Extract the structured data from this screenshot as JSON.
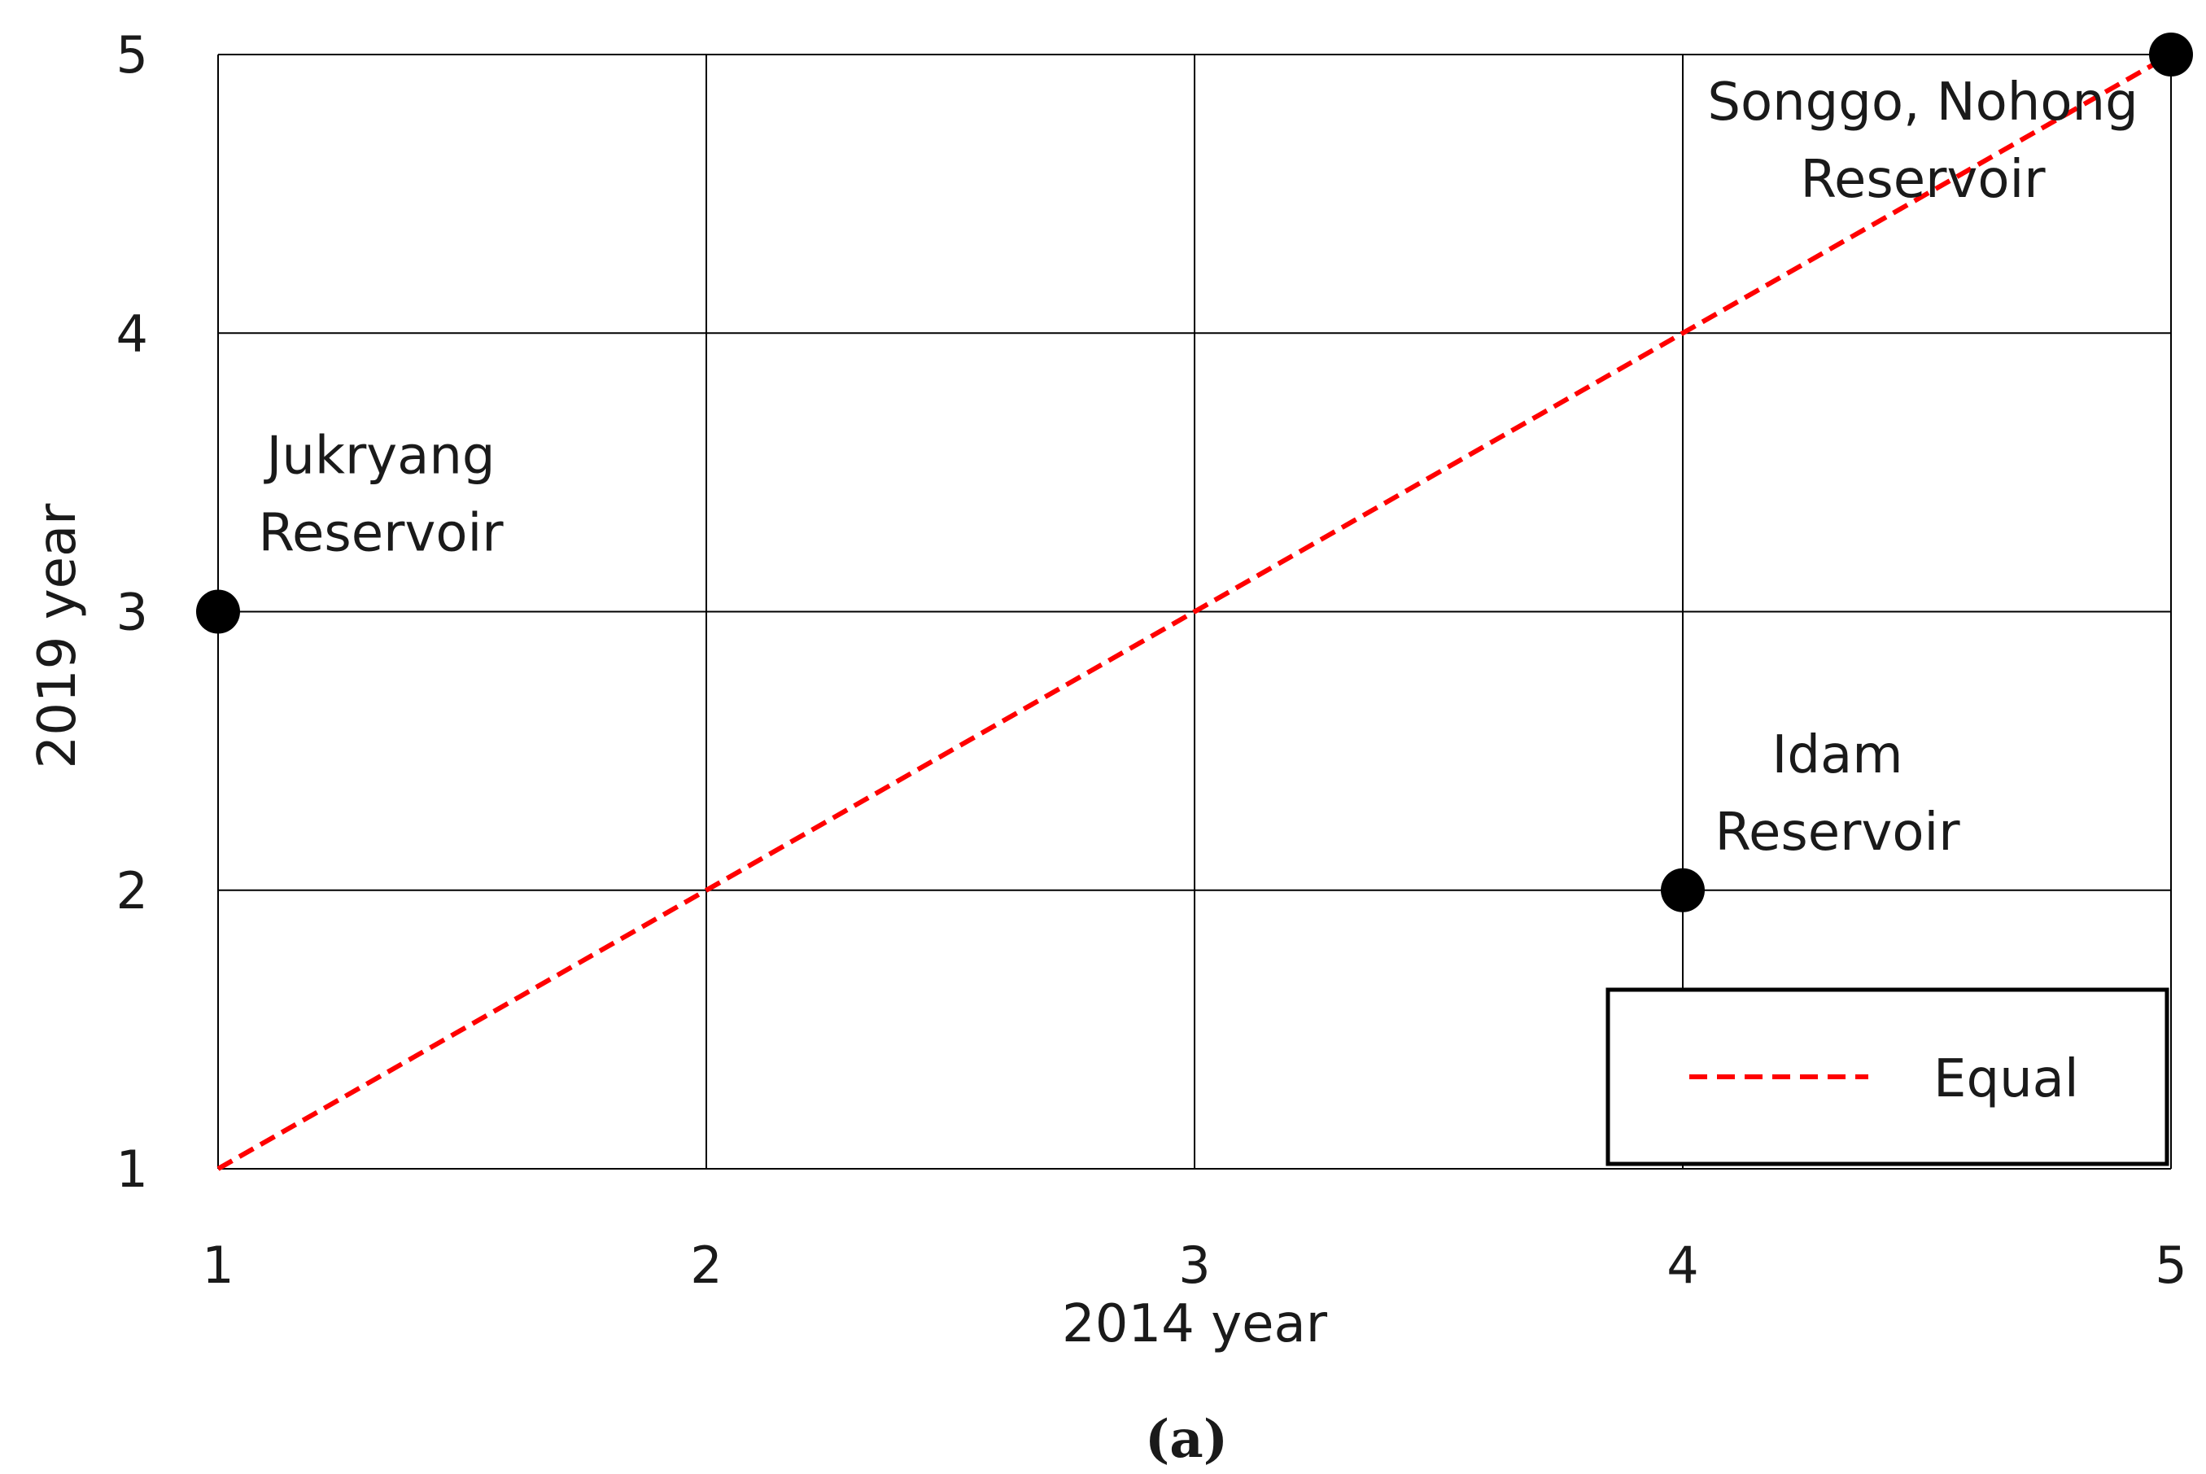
{
  "chart_data": {
    "type": "scatter",
    "title": "",
    "xlabel": "2014 year",
    "ylabel": "2019 year",
    "xlim": [
      1,
      5
    ],
    "ylim": [
      1,
      5
    ],
    "x_ticks": [
      "1",
      "2",
      "3",
      "4",
      "5"
    ],
    "y_ticks": [
      "1",
      "2",
      "3",
      "4",
      "5"
    ],
    "grid": true,
    "points": [
      {
        "label": "Jukryang Reservoir",
        "x": 1,
        "y": 3
      },
      {
        "label": "Idam Reservoir",
        "x": 4,
        "y": 2
      },
      {
        "label": "Songgo, Nohong Reservoir",
        "x": 5,
        "y": 5
      }
    ],
    "annotations": [
      {
        "lines": [
          "Jukryang",
          "Reservoir"
        ],
        "x": 1,
        "y": 3
      },
      {
        "lines": [
          "Idam",
          "Reservoir"
        ],
        "x": 4,
        "y": 2
      },
      {
        "lines": [
          "Songgo, Nohong",
          "Reservoir"
        ],
        "x": 5,
        "y": 5
      }
    ],
    "series": [
      {
        "name": "Equal",
        "type": "line",
        "style": "dashed",
        "color": "#ff0000",
        "x": [
          1,
          5
        ],
        "y": [
          1,
          5
        ]
      }
    ],
    "point_color": "#000000",
    "legend": {
      "position": "bottom-right",
      "entries": [
        "Equal"
      ]
    },
    "caption": "(a)"
  }
}
